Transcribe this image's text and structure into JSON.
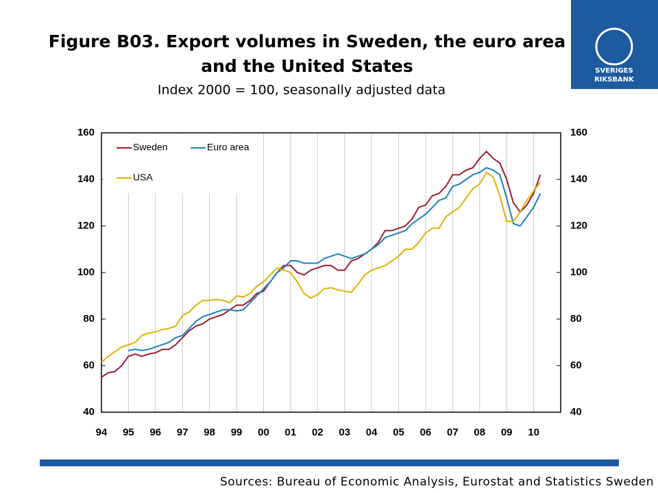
{
  "chart_data": {
    "type": "line",
    "title": "Figure B03. Export volumes in Sweden, the euro area",
    "title_line2": "and the United States",
    "subtitle": "Index 2000 = 100, seasonally adjusted data",
    "source": "Sources: Bureau of Economic Analysis, Eurostat and Statistics Sweden",
    "logo": [
      "SVERIGES",
      "RIKSBANK"
    ],
    "categories": [
      "94",
      null,
      null,
      null,
      "95",
      null,
      null,
      null,
      "96",
      null,
      null,
      null,
      "97",
      null,
      null,
      null,
      "98",
      null,
      null,
      null,
      "99",
      null,
      null,
      null,
      "00",
      null,
      null,
      null,
      "01",
      null,
      null,
      null,
      "02",
      null,
      null,
      null,
      "03",
      null,
      null,
      null,
      "04",
      null,
      null,
      null,
      "05",
      null,
      null,
      null,
      "06",
      null,
      null,
      null,
      "07",
      null,
      null,
      null,
      "08",
      null,
      null,
      null,
      "09",
      null,
      null,
      null,
      "10",
      null,
      null,
      null
    ],
    "series": [
      {
        "name": "Sweden",
        "color": "#9b1b30",
        "values": [
          55,
          57,
          57.5,
          60,
          64,
          65,
          64,
          65,
          65.5,
          67,
          67,
          69,
          72,
          75,
          77,
          78,
          80,
          81,
          82,
          84,
          86,
          86,
          88,
          91,
          92,
          96,
          100,
          103,
          103,
          100,
          99,
          101,
          102,
          103,
          103,
          101,
          101,
          105,
          106,
          108,
          110,
          113,
          118,
          118,
          119,
          120,
          123,
          128,
          129,
          133,
          134,
          137,
          142,
          142,
          144,
          145,
          149,
          152,
          149,
          147,
          140,
          130,
          126,
          129,
          134,
          142,
          null,
          null
        ]
      },
      {
        "name": "Euro area",
        "color": "#1f7fb8",
        "values": [
          null,
          null,
          null,
          null,
          66.5,
          67,
          66.5,
          67,
          68,
          69,
          70,
          72,
          73,
          76,
          79,
          81,
          82,
          83,
          84,
          84,
          83.5,
          84,
          87,
          90,
          93,
          96,
          100,
          102,
          105,
          105,
          104,
          104,
          104,
          106,
          107,
          108,
          107,
          106,
          107,
          108,
          110,
          112,
          115,
          116,
          117,
          118,
          121,
          123,
          125,
          128,
          131,
          132,
          137,
          138,
          140,
          142,
          143,
          145,
          144,
          142,
          132,
          121,
          120,
          124,
          128,
          134,
          null,
          null
        ]
      },
      {
        "name": "USA",
        "color": "#e0b000",
        "values": [
          61.5,
          64,
          66,
          68,
          69,
          70,
          73,
          74,
          74.5,
          75.5,
          76,
          77,
          81.5,
          83,
          86,
          88,
          88,
          88.5,
          88,
          87,
          90,
          89.5,
          91,
          94,
          96,
          99,
          102,
          101,
          100,
          96,
          91,
          89,
          90.5,
          93,
          93.5,
          92.5,
          92,
          91.5,
          95,
          99,
          101,
          102,
          103,
          105,
          107,
          110,
          110,
          113,
          117,
          119,
          119,
          124,
          126,
          128,
          132,
          136,
          138,
          143,
          141,
          133,
          122,
          122,
          126,
          131,
          135,
          139,
          null,
          null
        ]
      }
    ],
    "ylim": [
      40,
      160
    ],
    "yticks": [
      40,
      60,
      80,
      100,
      120,
      140,
      160
    ],
    "y2lim": [
      40,
      160
    ],
    "y2ticks": [
      40,
      60,
      80,
      100,
      120,
      140,
      160
    ],
    "grid": true,
    "legend": "upper left"
  }
}
